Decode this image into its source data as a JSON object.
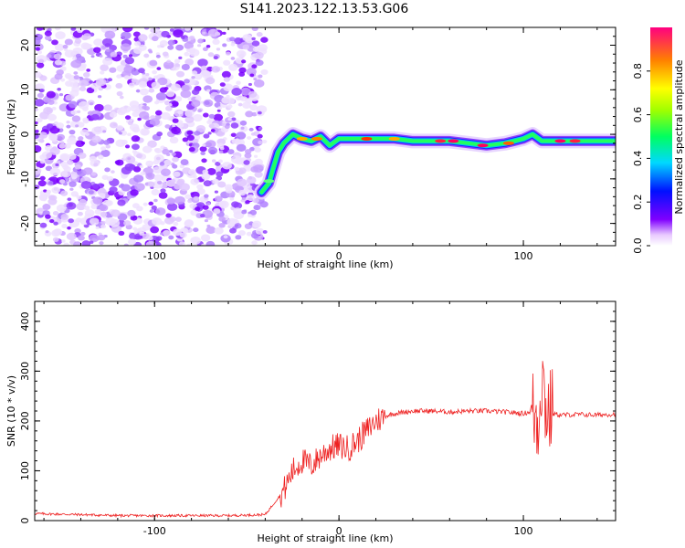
{
  "title": "S141.2023.122.13.53.G06",
  "chart_data": [
    {
      "type": "heatmap",
      "xlabel": "Height of straight line (km)",
      "ylabel": "Frequency (Hz)",
      "xlim": [
        -165,
        150
      ],
      "ylim": [
        -25,
        24
      ],
      "x_ticks": [
        -100,
        0,
        100
      ],
      "y_ticks": [
        -20,
        -10,
        0,
        10,
        20
      ],
      "noise_region_x": [
        -165,
        -40
      ],
      "ridge": {
        "x": [
          -42,
          -38,
          -36,
          -33,
          -30,
          -25,
          -20,
          -15,
          -10,
          -5,
          0,
          10,
          20,
          30,
          40,
          50,
          60,
          70,
          80,
          90,
          95,
          100,
          105,
          110,
          120,
          130,
          140,
          150
        ],
        "y": [
          -13,
          -11,
          -8,
          -4,
          -2,
          0,
          -1,
          -1.5,
          -0.5,
          -2.5,
          -1,
          -1,
          -1,
          -1,
          -1.5,
          -1.5,
          -1.5,
          -2,
          -2.5,
          -2,
          -1.5,
          -1,
          0,
          -1.5,
          -1.5,
          -1.5,
          -1.5,
          -1.5
        ]
      },
      "colorbar": {
        "label": "Normalized spectral amplitude",
        "ticks": [
          0.0,
          0.2,
          0.4,
          0.6,
          0.8
        ],
        "range": [
          0,
          1
        ]
      },
      "grid": false
    },
    {
      "type": "line",
      "xlabel": "Height of straight line (km)",
      "ylabel": "SNR (10 * v/v)",
      "xlim": [
        -165,
        150
      ],
      "ylim": [
        0,
        440
      ],
      "x_ticks": [
        -100,
        0,
        100
      ],
      "y_ticks": [
        0,
        100,
        200,
        300,
        400
      ],
      "color": "#ee2222",
      "series": [
        {
          "x": [
            -165,
            -140,
            -120,
            -100,
            -80,
            -60,
            -40,
            -30,
            -25,
            -20,
            -15,
            -10,
            -5,
            0,
            5,
            10,
            15,
            20,
            25,
            30,
            40,
            50,
            60,
            70,
            80,
            90,
            100,
            105,
            108,
            110,
            112,
            115,
            120,
            130,
            140,
            150
          ],
          "y": [
            14,
            12,
            10,
            10,
            10,
            10,
            12,
            60,
            100,
            120,
            110,
            130,
            145,
            150,
            145,
            160,
            180,
            200,
            210,
            215,
            220,
            220,
            218,
            220,
            220,
            218,
            215,
            220,
            200,
            300,
            230,
            215,
            212,
            213,
            212,
            214
          ]
        }
      ],
      "grid": false
    }
  ]
}
